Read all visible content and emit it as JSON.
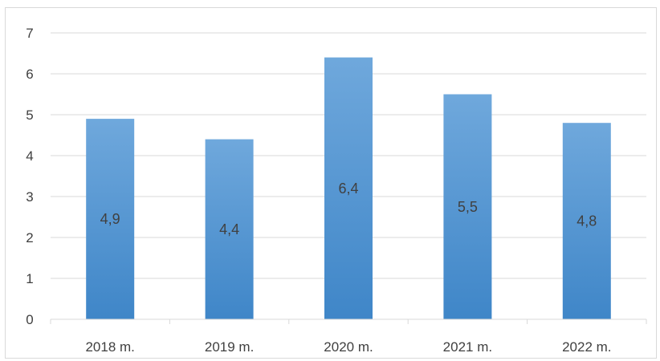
{
  "chart_data": {
    "type": "bar",
    "categories": [
      "2018 m.",
      "2019 m.",
      "2020 m.",
      "2021 m.",
      "2022 m."
    ],
    "values": [
      4.9,
      4.4,
      6.4,
      5.5,
      4.8
    ],
    "data_labels": [
      "4,9",
      "4,4",
      "6,4",
      "5,5",
      "4,8"
    ],
    "ylim": [
      0,
      7
    ],
    "yticks": [
      0,
      1,
      2,
      3,
      4,
      5,
      6,
      7
    ],
    "grid": true,
    "legend": "none",
    "bar_color_top": "#6fa8dc",
    "bar_color_bottom": "#3f86c8",
    "gridline_color": "#d9d9d9",
    "text_color": "#404040"
  }
}
